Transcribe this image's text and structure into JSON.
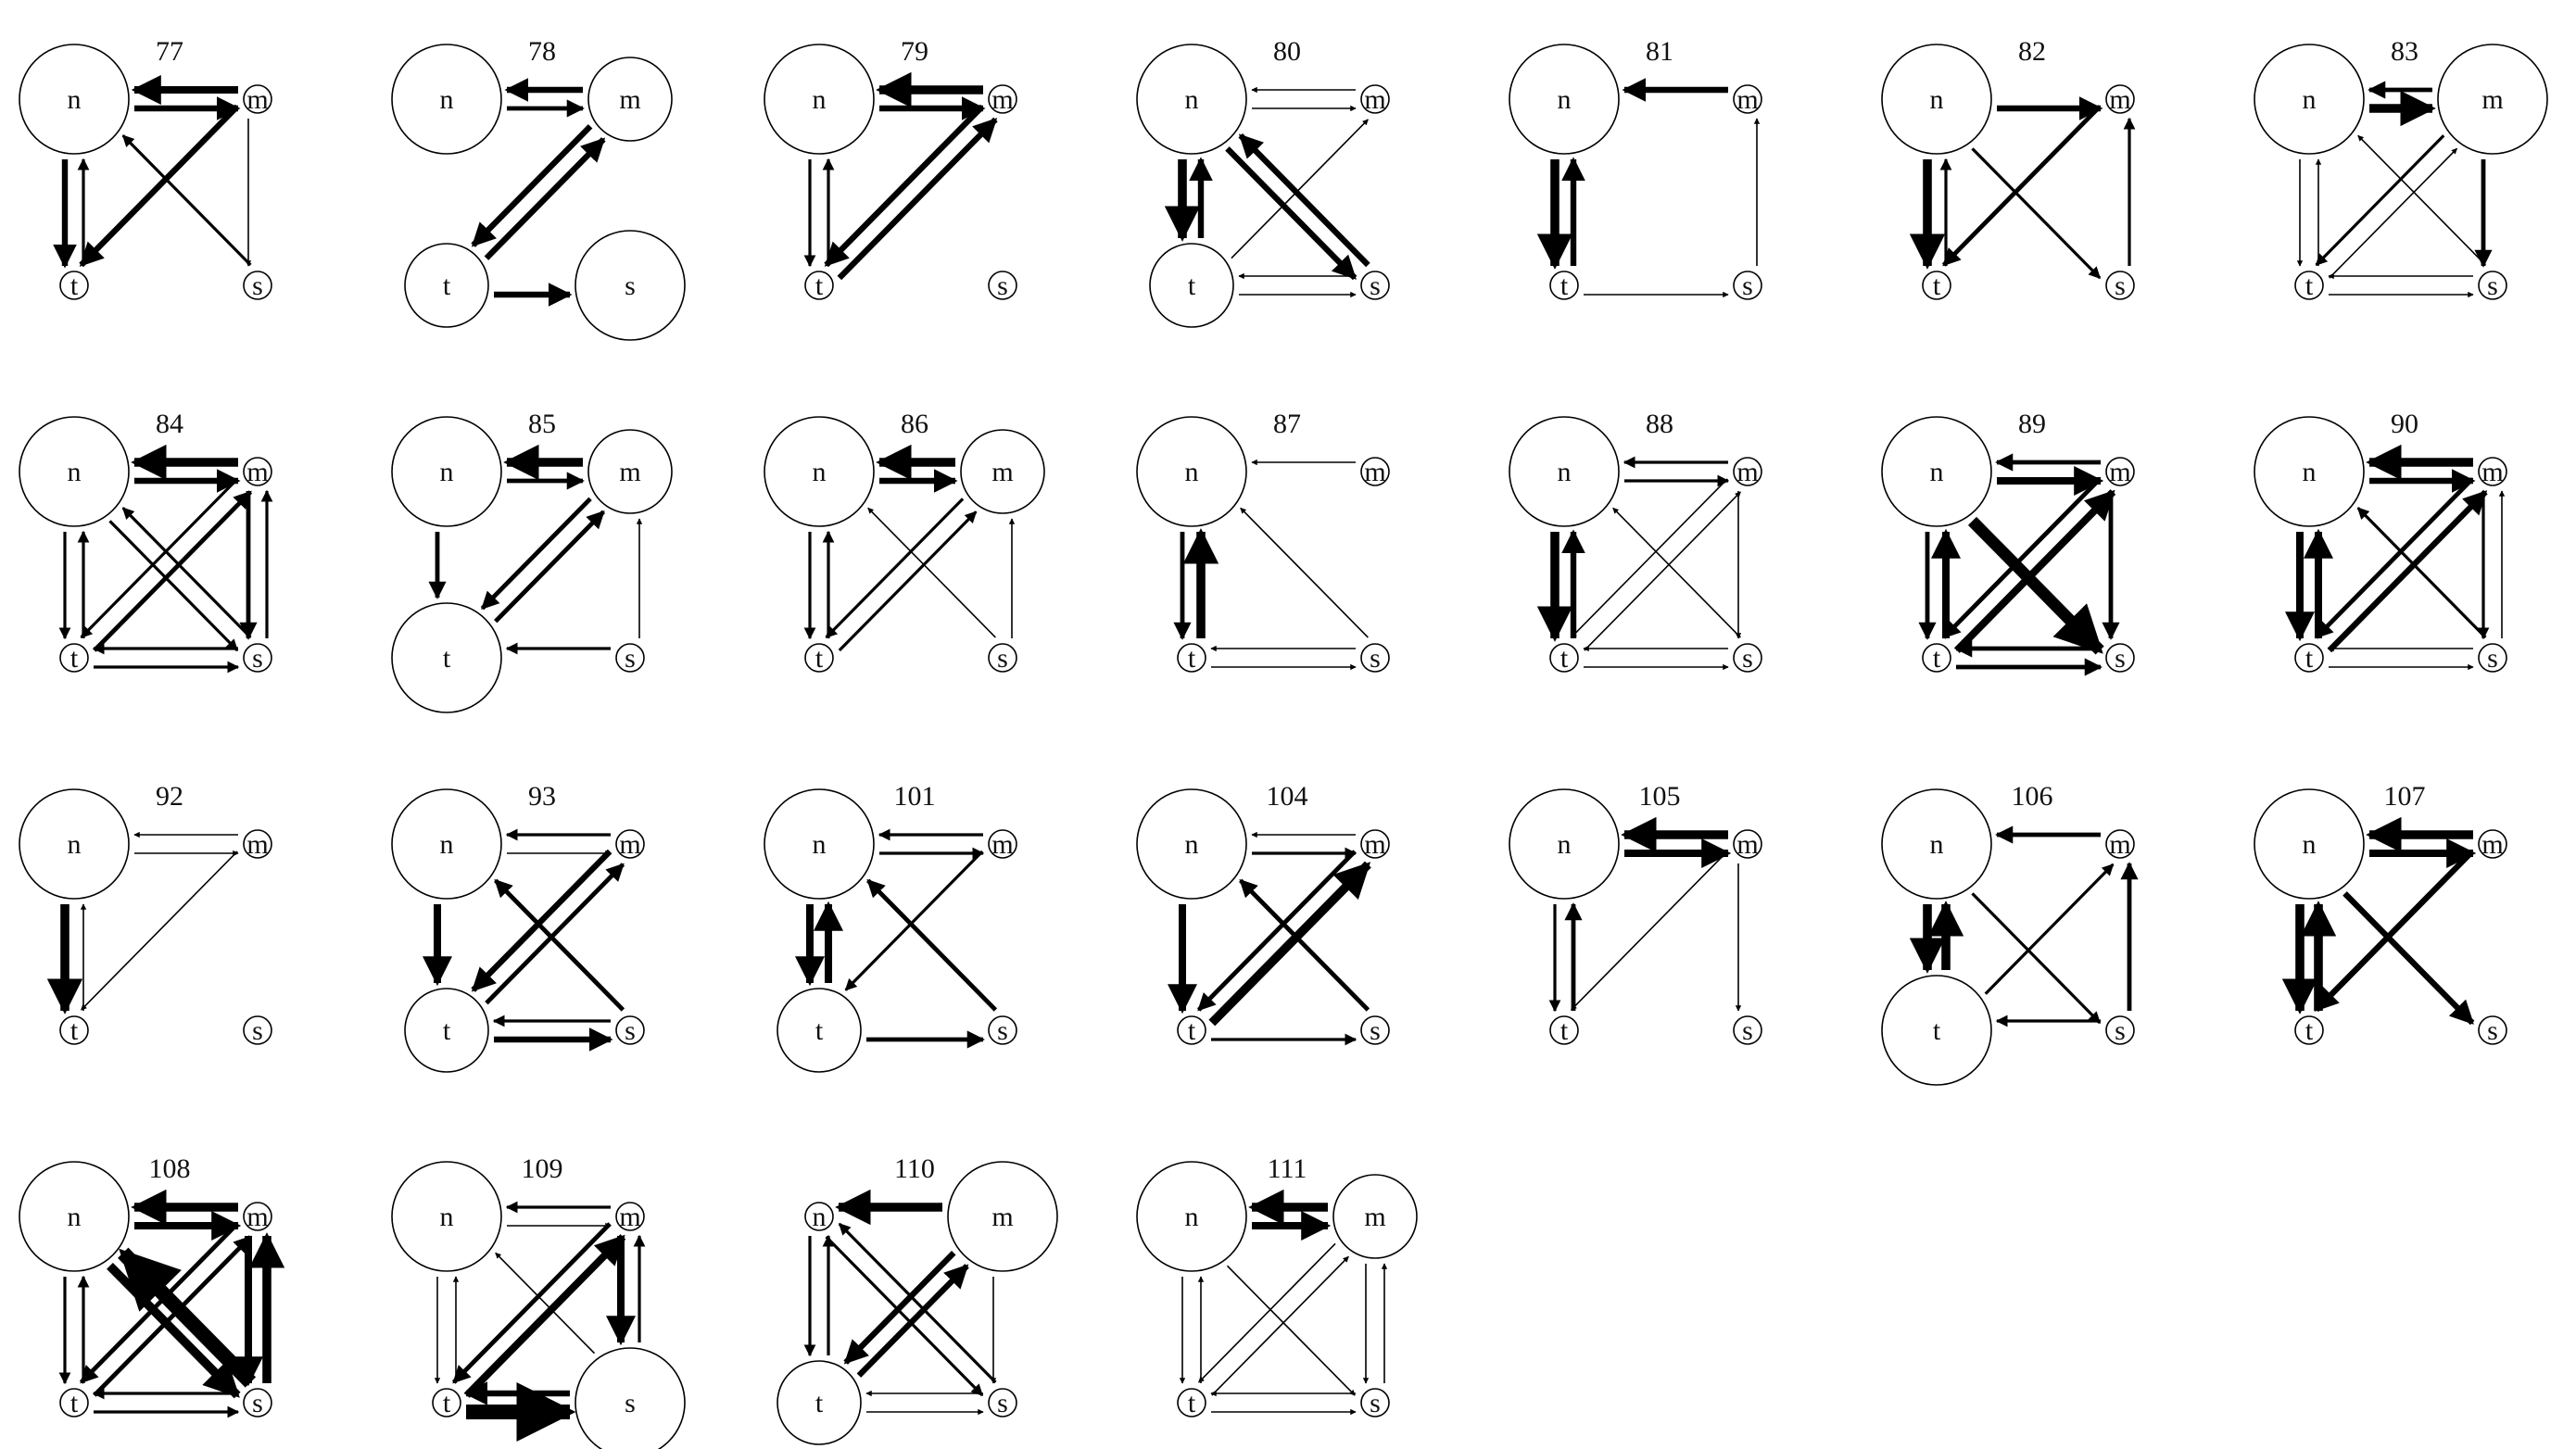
{
  "node_labels": {
    "n": "n",
    "m": "m",
    "t": "t",
    "s": "s"
  },
  "panels": [
    {
      "id": "77",
      "sizes": {
        "n": 3,
        "m": 1,
        "t": 1,
        "s": 1
      },
      "edges": [
        [
          "n",
          "m",
          4
        ],
        [
          "m",
          "n",
          5
        ],
        [
          "n",
          "t",
          4
        ],
        [
          "t",
          "n",
          2
        ],
        [
          "m",
          "t",
          4
        ],
        [
          "s",
          "n",
          2
        ],
        [
          "m",
          "s",
          1
        ]
      ]
    },
    {
      "id": "78",
      "sizes": {
        "n": 3,
        "m": 2,
        "t": 2,
        "s": 3
      },
      "edges": [
        [
          "n",
          "m",
          3
        ],
        [
          "m",
          "n",
          4
        ],
        [
          "t",
          "m",
          4
        ],
        [
          "m",
          "t",
          4
        ],
        [
          "t",
          "s",
          4
        ]
      ]
    },
    {
      "id": "79",
      "sizes": {
        "n": 3,
        "m": 1,
        "t": 1,
        "s": 1
      },
      "edges": [
        [
          "n",
          "m",
          4
        ],
        [
          "m",
          "n",
          6
        ],
        [
          "n",
          "t",
          2
        ],
        [
          "t",
          "n",
          2
        ],
        [
          "t",
          "m",
          4
        ],
        [
          "m",
          "t",
          4
        ]
      ]
    },
    {
      "id": "80",
      "sizes": {
        "n": 3,
        "m": 1,
        "t": 2,
        "s": 1
      },
      "edges": [
        [
          "n",
          "m",
          1
        ],
        [
          "m",
          "n",
          1
        ],
        [
          "n",
          "t",
          6
        ],
        [
          "t",
          "n",
          4
        ],
        [
          "t",
          "m",
          1
        ],
        [
          "s",
          "n",
          4
        ],
        [
          "n",
          "s",
          4
        ],
        [
          "t",
          "s",
          1
        ],
        [
          "s",
          "t",
          1
        ]
      ]
    },
    {
      "id": "81",
      "sizes": {
        "n": 3,
        "m": 1,
        "t": 1,
        "s": 1
      },
      "edges": [
        [
          "m",
          "n",
          4
        ],
        [
          "n",
          "t",
          6
        ],
        [
          "t",
          "n",
          4
        ],
        [
          "t",
          "s",
          1
        ],
        [
          "s",
          "m",
          1
        ]
      ]
    },
    {
      "id": "82",
      "sizes": {
        "n": 3,
        "m": 1,
        "t": 1,
        "s": 1
      },
      "edges": [
        [
          "n",
          "m",
          4
        ],
        [
          "n",
          "t",
          6
        ],
        [
          "t",
          "n",
          2
        ],
        [
          "m",
          "t",
          3
        ],
        [
          "n",
          "s",
          2
        ],
        [
          "s",
          "m",
          2
        ]
      ]
    },
    {
      "id": "83",
      "sizes": {
        "n": 3,
        "m": 3,
        "t": 1,
        "s": 1
      },
      "edges": [
        [
          "n",
          "m",
          6
        ],
        [
          "m",
          "n",
          3
        ],
        [
          "n",
          "t",
          1
        ],
        [
          "t",
          "n",
          1
        ],
        [
          "t",
          "m",
          1
        ],
        [
          "m",
          "t",
          2
        ],
        [
          "s",
          "n",
          1
        ],
        [
          "m",
          "s",
          3
        ],
        [
          "t",
          "s",
          1
        ],
        [
          "s",
          "t",
          1
        ]
      ]
    },
    {
      "id": "84",
      "sizes": {
        "n": 3,
        "m": 1,
        "t": 1,
        "s": 1
      },
      "edges": [
        [
          "n",
          "m",
          4
        ],
        [
          "m",
          "n",
          6
        ],
        [
          "n",
          "t",
          2
        ],
        [
          "t",
          "n",
          2
        ],
        [
          "t",
          "m",
          3
        ],
        [
          "m",
          "t",
          2
        ],
        [
          "s",
          "n",
          2
        ],
        [
          "n",
          "s",
          2
        ],
        [
          "m",
          "s",
          3
        ],
        [
          "s",
          "m",
          2
        ],
        [
          "t",
          "s",
          2
        ],
        [
          "s",
          "t",
          2
        ]
      ]
    },
    {
      "id": "85",
      "sizes": {
        "n": 3,
        "m": 2,
        "t": 3,
        "s": 1
      },
      "edges": [
        [
          "n",
          "m",
          3
        ],
        [
          "m",
          "n",
          6
        ],
        [
          "n",
          "t",
          3
        ],
        [
          "t",
          "m",
          3
        ],
        [
          "m",
          "t",
          3
        ],
        [
          "s",
          "t",
          2
        ],
        [
          "s",
          "m",
          1
        ]
      ]
    },
    {
      "id": "86",
      "sizes": {
        "n": 3,
        "m": 2,
        "t": 1,
        "s": 1
      },
      "edges": [
        [
          "n",
          "m",
          4
        ],
        [
          "m",
          "n",
          6
        ],
        [
          "n",
          "t",
          2
        ],
        [
          "t",
          "n",
          2
        ],
        [
          "t",
          "m",
          2
        ],
        [
          "m",
          "t",
          2
        ],
        [
          "s",
          "n",
          1
        ],
        [
          "s",
          "m",
          1
        ]
      ]
    },
    {
      "id": "87",
      "sizes": {
        "n": 3,
        "m": 1,
        "t": 1,
        "s": 1
      },
      "edges": [
        [
          "m",
          "n",
          1
        ],
        [
          "n",
          "t",
          3
        ],
        [
          "t",
          "n",
          6
        ],
        [
          "s",
          "n",
          1
        ],
        [
          "t",
          "s",
          1
        ],
        [
          "s",
          "t",
          1
        ]
      ]
    },
    {
      "id": "88",
      "sizes": {
        "n": 3,
        "m": 1,
        "t": 1,
        "s": 1
      },
      "edges": [
        [
          "n",
          "m",
          2
        ],
        [
          "m",
          "n",
          2
        ],
        [
          "n",
          "t",
          6
        ],
        [
          "t",
          "n",
          4
        ],
        [
          "t",
          "m",
          1
        ],
        [
          "s",
          "n",
          1
        ],
        [
          "m",
          "t",
          1
        ],
        [
          "m",
          "s",
          1
        ],
        [
          "t",
          "s",
          1
        ],
        [
          "s",
          "t",
          1
        ]
      ]
    },
    {
      "id": "89",
      "sizes": {
        "n": 3,
        "m": 1,
        "t": 1,
        "s": 1
      },
      "edges": [
        [
          "n",
          "m",
          5
        ],
        [
          "m",
          "n",
          3
        ],
        [
          "n",
          "t",
          3
        ],
        [
          "t",
          "n",
          5
        ],
        [
          "t",
          "m",
          5
        ],
        [
          "m",
          "t",
          3
        ],
        [
          "n",
          "s",
          8
        ],
        [
          "m",
          "s",
          3
        ],
        [
          "t",
          "s",
          3
        ],
        [
          "s",
          "t",
          3
        ]
      ]
    },
    {
      "id": "90",
      "sizes": {
        "n": 3,
        "m": 1,
        "t": 1,
        "s": 1
      },
      "edges": [
        [
          "n",
          "m",
          4
        ],
        [
          "m",
          "n",
          6
        ],
        [
          "n",
          "t",
          5
        ],
        [
          "t",
          "n",
          5
        ],
        [
          "t",
          "m",
          4
        ],
        [
          "m",
          "t",
          3
        ],
        [
          "s",
          "n",
          2
        ],
        [
          "m",
          "s",
          2
        ],
        [
          "s",
          "m",
          1
        ],
        [
          "t",
          "s",
          1
        ],
        [
          "s",
          "t",
          1
        ]
      ]
    },
    {
      "id": "92",
      "sizes": {
        "n": 3,
        "m": 1,
        "t": 1,
        "s": 1
      },
      "edges": [
        [
          "n",
          "m",
          1
        ],
        [
          "m",
          "n",
          1
        ],
        [
          "n",
          "t",
          6
        ],
        [
          "t",
          "n",
          1
        ],
        [
          "m",
          "t",
          1
        ]
      ]
    },
    {
      "id": "93",
      "sizes": {
        "n": 3,
        "m": 1,
        "t": 2,
        "s": 1
      },
      "edges": [
        [
          "n",
          "m",
          1
        ],
        [
          "m",
          "n",
          2
        ],
        [
          "n",
          "t",
          5
        ],
        [
          "t",
          "m",
          3
        ],
        [
          "m",
          "t",
          4
        ],
        [
          "s",
          "n",
          3
        ],
        [
          "t",
          "s",
          4
        ],
        [
          "s",
          "t",
          2
        ]
      ]
    },
    {
      "id": "101",
      "sizes": {
        "n": 3,
        "m": 1,
        "t": 2,
        "s": 1
      },
      "edges": [
        [
          "n",
          "m",
          2
        ],
        [
          "m",
          "n",
          2
        ],
        [
          "n",
          "t",
          5
        ],
        [
          "t",
          "n",
          5
        ],
        [
          "m",
          "t",
          2
        ],
        [
          "s",
          "n",
          3
        ],
        [
          "t",
          "s",
          3
        ]
      ]
    },
    {
      "id": "104",
      "sizes": {
        "n": 3,
        "m": 1,
        "t": 1,
        "s": 1
      },
      "edges": [
        [
          "n",
          "m",
          2
        ],
        [
          "m",
          "n",
          1
        ],
        [
          "n",
          "t",
          5
        ],
        [
          "t",
          "m",
          6
        ],
        [
          "m",
          "t",
          3
        ],
        [
          "s",
          "n",
          3
        ],
        [
          "t",
          "s",
          2
        ]
      ]
    },
    {
      "id": "105",
      "sizes": {
        "n": 3,
        "m": 1,
        "t": 1,
        "s": 1
      },
      "edges": [
        [
          "n",
          "m",
          5
        ],
        [
          "m",
          "n",
          6
        ],
        [
          "n",
          "t",
          2
        ],
        [
          "t",
          "n",
          3
        ],
        [
          "m",
          "t",
          1
        ],
        [
          "m",
          "s",
          1
        ]
      ]
    },
    {
      "id": "106",
      "sizes": {
        "n": 3,
        "m": 1,
        "t": 3,
        "s": 1
      },
      "edges": [
        [
          "m",
          "n",
          3
        ],
        [
          "n",
          "t",
          6
        ],
        [
          "t",
          "n",
          6
        ],
        [
          "t",
          "m",
          2
        ],
        [
          "n",
          "s",
          2
        ],
        [
          "s",
          "m",
          3
        ],
        [
          "s",
          "t",
          2
        ]
      ]
    },
    {
      "id": "107",
      "sizes": {
        "n": 3,
        "m": 1,
        "t": 1,
        "s": 1
      },
      "edges": [
        [
          "n",
          "m",
          5
        ],
        [
          "m",
          "n",
          6
        ],
        [
          "n",
          "t",
          6
        ],
        [
          "t",
          "n",
          6
        ],
        [
          "m",
          "t",
          4
        ],
        [
          "n",
          "s",
          4
        ]
      ]
    },
    {
      "id": "108",
      "sizes": {
        "n": 3,
        "m": 1,
        "t": 1,
        "s": 1
      },
      "edges": [
        [
          "n",
          "m",
          5
        ],
        [
          "m",
          "n",
          6
        ],
        [
          "n",
          "t",
          2
        ],
        [
          "t",
          "n",
          2
        ],
        [
          "t",
          "m",
          3
        ],
        [
          "m",
          "t",
          3
        ],
        [
          "s",
          "n",
          10
        ],
        [
          "n",
          "s",
          6
        ],
        [
          "m",
          "s",
          5
        ],
        [
          "s",
          "m",
          6
        ],
        [
          "t",
          "s",
          2
        ],
        [
          "s",
          "t",
          2
        ]
      ]
    },
    {
      "id": "109",
      "sizes": {
        "n": 3,
        "m": 1,
        "t": 1,
        "s": 3
      },
      "edges": [
        [
          "n",
          "m",
          1
        ],
        [
          "m",
          "n",
          2
        ],
        [
          "n",
          "t",
          1
        ],
        [
          "t",
          "n",
          1
        ],
        [
          "t",
          "m",
          5
        ],
        [
          "m",
          "t",
          3
        ],
        [
          "s",
          "n",
          1
        ],
        [
          "m",
          "s",
          5
        ],
        [
          "s",
          "m",
          2
        ],
        [
          "t",
          "s",
          10
        ],
        [
          "s",
          "t",
          4
        ]
      ]
    },
    {
      "id": "110",
      "sizes": {
        "n": 1,
        "m": 3,
        "t": 2,
        "s": 1
      },
      "edges": [
        [
          "m",
          "n",
          6
        ],
        [
          "n",
          "t",
          2
        ],
        [
          "t",
          "n",
          2
        ],
        [
          "t",
          "m",
          4
        ],
        [
          "m",
          "t",
          4
        ],
        [
          "s",
          "n",
          2
        ],
        [
          "n",
          "s",
          2
        ],
        [
          "m",
          "s",
          1
        ],
        [
          "t",
          "s",
          1
        ],
        [
          "s",
          "t",
          1
        ]
      ]
    },
    {
      "id": "111",
      "sizes": {
        "n": 3,
        "m": 2,
        "t": 1,
        "s": 1
      },
      "edges": [
        [
          "n",
          "m",
          5
        ],
        [
          "m",
          "n",
          6
        ],
        [
          "n",
          "t",
          1
        ],
        [
          "t",
          "n",
          1
        ],
        [
          "t",
          "m",
          1
        ],
        [
          "m",
          "t",
          1
        ],
        [
          "n",
          "s",
          1
        ],
        [
          "m",
          "s",
          1
        ],
        [
          "s",
          "m",
          1
        ],
        [
          "t",
          "s",
          1
        ],
        [
          "s",
          "t",
          1
        ]
      ]
    }
  ]
}
